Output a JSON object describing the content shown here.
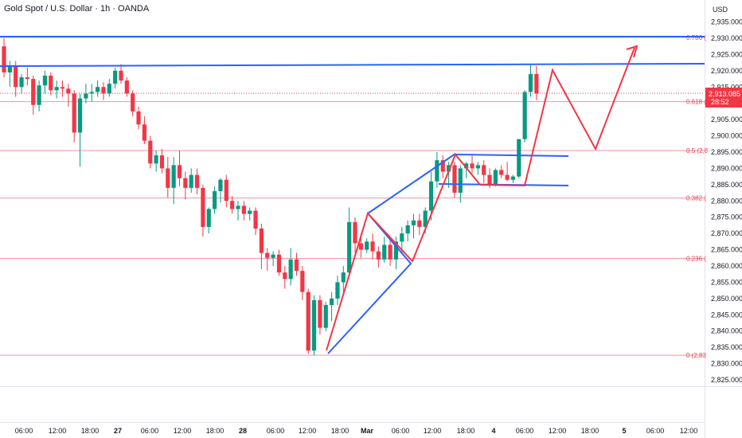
{
  "header": {
    "symbol_title": "Gold Spot / U.S. Dollar · 1h · OANDA",
    "currency": "USD"
  },
  "price_badge": {
    "price": "2,913.085",
    "countdown": "28:52",
    "color": "#f23645"
  },
  "colors": {
    "up": "#089981",
    "down": "#f23645",
    "fib": "#f7768e",
    "fib_top": "#9c8fd9",
    "trend_blue": "#2962ff",
    "pattern_red": "#f23645"
  },
  "chart_data": {
    "type": "candlestick",
    "title": "Gold Spot / U.S. Dollar · 1h · OANDA",
    "ylim": [
      2821,
      2939
    ],
    "y_ticks": [
      "2,935.000",
      "2,930.000",
      "2,925.000",
      "2,920.000",
      "2,915.000",
      "2,910.000",
      "2,905.000",
      "2,900.000",
      "2,895.000",
      "2,890.000",
      "2,885.000",
      "2,880.000",
      "2,875.000",
      "2,870.000",
      "2,865.000",
      "2,860.000",
      "2,855.000",
      "2,850.000",
      "2,845.000",
      "2,840.000",
      "2,835.000",
      "2,830.000",
      "2,825.000"
    ],
    "x_ticks": [
      "06:00",
      "12:00",
      "18:00",
      "27",
      "06:00",
      "12:00",
      "18:00",
      "28",
      "06:00",
      "12:00",
      "18:00",
      "Mar",
      "06:00",
      "12:00",
      "18:00",
      "4",
      "06:00",
      "12:00",
      "18:00",
      "5",
      "06:00",
      "12:00"
    ],
    "x_ticks_bold": [
      "27",
      "28",
      "Mar",
      "4",
      "5"
    ],
    "fib_levels": [
      {
        "label": "0.786 (",
        "price": 2930.3
      },
      {
        "label": "0.618 (",
        "price": 2910.5
      },
      {
        "label": "0.5 (2,8",
        "price": 2895.5
      },
      {
        "label": "0.382 (",
        "price": 2880.9
      },
      {
        "label": "0.236 (",
        "price": 2862.3
      },
      {
        "label": "0 (2,83",
        "price": 2832.6
      }
    ],
    "candles": [
      [
        2927.5,
        2930.0,
        2918.0,
        2919.5
      ],
      [
        2919.5,
        2923.0,
        2915.0,
        2921.5
      ],
      [
        2921.5,
        2923.0,
        2912.0,
        2915.0
      ],
      [
        2915.0,
        2919.0,
        2913.0,
        2918.0
      ],
      [
        2918.0,
        2921.0,
        2915.5,
        2917.5
      ],
      [
        2917.5,
        2918.5,
        2906.5,
        2909.5
      ],
      [
        2909.5,
        2917.0,
        2907.5,
        2915.5
      ],
      [
        2915.5,
        2920.0,
        2913.0,
        2918.5
      ],
      [
        2918.5,
        2919.5,
        2912.5,
        2914.0
      ],
      [
        2914.0,
        2917.0,
        2911.5,
        2915.0
      ],
      [
        2915.0,
        2917.0,
        2912.0,
        2914.5
      ],
      [
        2914.5,
        2916.0,
        2909.0,
        2913.0
      ],
      [
        2913.0,
        2914.0,
        2898.0,
        2901.0
      ],
      [
        2901.0,
        2913.0,
        2890.5,
        2911.5
      ],
      [
        2911.5,
        2916.0,
        2910.0,
        2913.0
      ],
      [
        2913.0,
        2916.0,
        2910.5,
        2913.5
      ],
      [
        2913.5,
        2917.0,
        2912.0,
        2915.0
      ],
      [
        2915.0,
        2916.5,
        2911.0,
        2913.0
      ],
      [
        2913.0,
        2917.5,
        2912.0,
        2916.0
      ],
      [
        2916.0,
        2921.0,
        2914.5,
        2920.0
      ],
      [
        2920.0,
        2922.0,
        2916.0,
        2917.0
      ],
      [
        2917.0,
        2918.0,
        2912.0,
        2913.0
      ],
      [
        2913.0,
        2914.0,
        2906.0,
        2907.5
      ],
      [
        2907.5,
        2909.0,
        2902.0,
        2903.5
      ],
      [
        2903.5,
        2906.0,
        2897.5,
        2898.5
      ],
      [
        2898.5,
        2900.0,
        2890.0,
        2891.5
      ],
      [
        2891.5,
        2895.5,
        2889.0,
        2894.0
      ],
      [
        2894.0,
        2896.0,
        2888.5,
        2890.0
      ],
      [
        2890.0,
        2893.5,
        2881.0,
        2884.0
      ],
      [
        2884.0,
        2893.5,
        2879.0,
        2891.0
      ],
      [
        2891.0,
        2895.5,
        2884.5,
        2887.0
      ],
      [
        2887.0,
        2889.0,
        2880.5,
        2884.0
      ],
      [
        2884.0,
        2890.0,
        2882.5,
        2888.0
      ],
      [
        2888.0,
        2890.0,
        2882.0,
        2884.0
      ],
      [
        2884.0,
        2885.0,
        2869.0,
        2872.0
      ],
      [
        2872.0,
        2878.0,
        2870.0,
        2877.5
      ],
      [
        2877.5,
        2884.5,
        2876.0,
        2883.0
      ],
      [
        2883.0,
        2887.0,
        2879.5,
        2886.5
      ],
      [
        2886.5,
        2888.0,
        2878.0,
        2880.0
      ],
      [
        2880.0,
        2881.5,
        2876.0,
        2877.5
      ],
      [
        2877.5,
        2880.0,
        2874.0,
        2878.5
      ],
      [
        2878.5,
        2880.0,
        2874.0,
        2876.0
      ],
      [
        2876.0,
        2878.0,
        2874.0,
        2877.0
      ],
      [
        2877.0,
        2878.0,
        2869.5,
        2871.5
      ],
      [
        2871.5,
        2873.0,
        2859.0,
        2864.0
      ],
      [
        2864.0,
        2865.5,
        2858.5,
        2862.5
      ],
      [
        2862.5,
        2864.5,
        2860.0,
        2863.5
      ],
      [
        2863.5,
        2865.0,
        2857.0,
        2858.0
      ],
      [
        2858.0,
        2860.0,
        2853.0,
        2856.0
      ],
      [
        2856.0,
        2865.5,
        2854.0,
        2862.0
      ],
      [
        2862.0,
        2864.0,
        2857.0,
        2858.5
      ],
      [
        2858.5,
        2860.0,
        2849.5,
        2852.0
      ],
      [
        2852.0,
        2853.0,
        2833.0,
        2834.0
      ],
      [
        2834.0,
        2851.0,
        2832.6,
        2849.5
      ],
      [
        2849.5,
        2851.0,
        2839.0,
        2841.0
      ],
      [
        2841.0,
        2849.0,
        2840.0,
        2848.0
      ],
      [
        2848.0,
        2852.0,
        2843.0,
        2850.0
      ],
      [
        2850.0,
        2857.0,
        2848.0,
        2855.0
      ],
      [
        2855.0,
        2860.0,
        2852.0,
        2858.0
      ],
      [
        2858.0,
        2878.0,
        2857.0,
        2873.5
      ],
      [
        2873.5,
        2875.0,
        2864.0,
        2867.0
      ],
      [
        2867.0,
        2870.0,
        2862.5,
        2865.0
      ],
      [
        2865.0,
        2868.5,
        2864.0,
        2867.5
      ],
      [
        2867.5,
        2870.0,
        2862.0,
        2864.5
      ],
      [
        2864.5,
        2866.0,
        2859.5,
        2862.0
      ],
      [
        2862.0,
        2869.0,
        2861.0,
        2866.5
      ],
      [
        2866.5,
        2868.0,
        2860.0,
        2862.0
      ],
      [
        2862.0,
        2869.0,
        2859.0,
        2867.5
      ],
      [
        2867.5,
        2872.0,
        2864.0,
        2870.0
      ],
      [
        2870.0,
        2874.0,
        2867.5,
        2872.5
      ],
      [
        2872.5,
        2876.0,
        2868.5,
        2874.0
      ],
      [
        2874.0,
        2876.0,
        2869.5,
        2872.0
      ],
      [
        2872.0,
        2878.0,
        2870.0,
        2877.0
      ],
      [
        2877.0,
        2889.0,
        2874.0,
        2886.0
      ],
      [
        2886.0,
        2895.0,
        2884.0,
        2892.5
      ],
      [
        2892.5,
        2894.0,
        2887.0,
        2889.0
      ],
      [
        2889.0,
        2892.0,
        2884.0,
        2891.0
      ],
      [
        2891.0,
        2892.0,
        2881.0,
        2882.5
      ],
      [
        2882.5,
        2891.0,
        2879.5,
        2890.0
      ],
      [
        2890.0,
        2892.0,
        2887.0,
        2891.5
      ],
      [
        2891.5,
        2894.0,
        2888.5,
        2890.0
      ],
      [
        2890.0,
        2892.0,
        2888.0,
        2891.0
      ],
      [
        2891.0,
        2892.5,
        2885.5,
        2888.0
      ],
      [
        2888.0,
        2890.0,
        2884.0,
        2885.0
      ],
      [
        2885.0,
        2890.0,
        2884.5,
        2889.5
      ],
      [
        2889.5,
        2891.0,
        2887.0,
        2888.0
      ],
      [
        2888.0,
        2892.0,
        2886.0,
        2886.5
      ],
      [
        2886.5,
        2888.0,
        2885.5,
        2887.5
      ],
      [
        2887.5,
        2899.0,
        2887.0,
        2899.0
      ],
      [
        2899.0,
        2914.0,
        2898.0,
        2913.5
      ],
      [
        2913.5,
        2922.0,
        2912.0,
        2919.0
      ],
      [
        2919.0,
        2921.5,
        2911.0,
        2913.085
      ]
    ],
    "x_axis_bars": {
      "06:00": 1,
      "12:00": 7,
      "18:00": 13,
      "27": 19,
      "06:00 (27)": 25,
      "12:00 (27)": 31
    }
  }
}
